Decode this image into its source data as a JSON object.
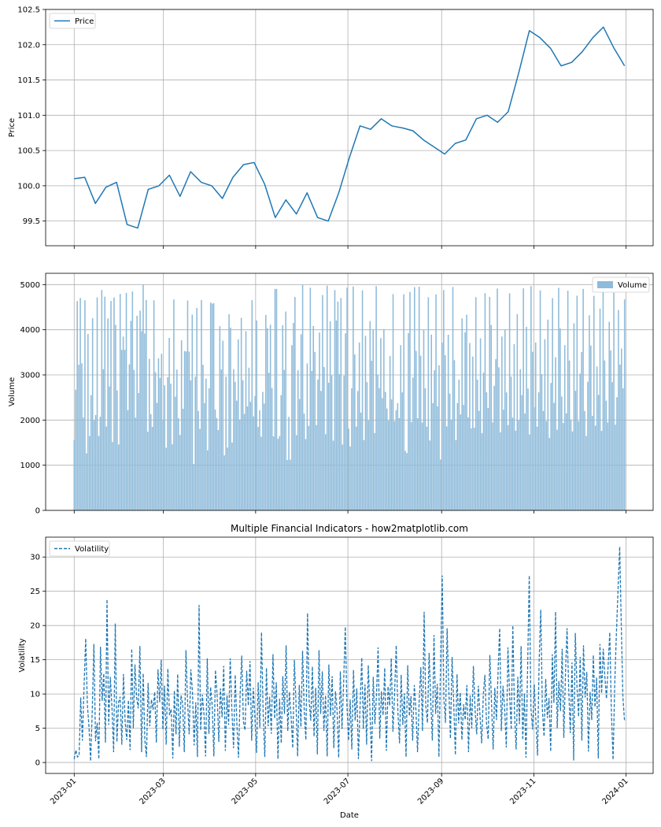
{
  "title": "Multiple Financial Indicators - how2matplotlib.com",
  "colors": {
    "line": "#1f77b4",
    "bar": "#8fbbda",
    "grid": "#b0b0b0",
    "axes": "#000000"
  },
  "x_axis": {
    "label": "Date",
    "start": "2023-01-01",
    "end": "2023-12-31",
    "ticks": [
      "2023-01",
      "2023-03",
      "2023-05",
      "2023-07",
      "2023-09",
      "2023-11",
      "2024-01"
    ]
  },
  "chart_data": [
    {
      "type": "line",
      "ylabel": "Price",
      "legend": "Price",
      "legend_loc": "upper left",
      "ylim": [
        99.15,
        102.5
      ],
      "yticks": [
        99.5,
        100.0,
        100.5,
        101.0,
        101.5,
        102.0,
        102.5
      ],
      "grid": true,
      "x": [
        "2023-01-01",
        "2023-01-08",
        "2023-01-15",
        "2023-01-22",
        "2023-01-29",
        "2023-02-05",
        "2023-02-12",
        "2023-02-19",
        "2023-02-26",
        "2023-03-05",
        "2023-03-12",
        "2023-03-19",
        "2023-03-26",
        "2023-04-02",
        "2023-04-09",
        "2023-04-16",
        "2023-04-23",
        "2023-04-30",
        "2023-05-07",
        "2023-05-14",
        "2023-05-21",
        "2023-05-28",
        "2023-06-04",
        "2023-06-11",
        "2023-06-18",
        "2023-06-25",
        "2023-07-02",
        "2023-07-09",
        "2023-07-16",
        "2023-07-23",
        "2023-07-30",
        "2023-08-06",
        "2023-08-13",
        "2023-08-20",
        "2023-08-27",
        "2023-09-03",
        "2023-09-10",
        "2023-09-17",
        "2023-09-24",
        "2023-10-01",
        "2023-10-08",
        "2023-10-15",
        "2023-10-22",
        "2023-10-29",
        "2023-11-05",
        "2023-11-12",
        "2023-11-19",
        "2023-11-26",
        "2023-12-03",
        "2023-12-10",
        "2023-12-17",
        "2023-12-24",
        "2023-12-31"
      ],
      "values": [
        100.1,
        100.12,
        99.75,
        99.98,
        100.05,
        99.45,
        99.4,
        99.95,
        100.0,
        100.15,
        99.85,
        100.2,
        100.05,
        100.0,
        99.82,
        100.12,
        100.3,
        100.33,
        100.02,
        99.55,
        99.8,
        99.6,
        99.9,
        99.55,
        99.5,
        99.9,
        100.4,
        100.85,
        100.8,
        100.95,
        100.85,
        100.82,
        100.78,
        100.65,
        100.55,
        100.45,
        100.6,
        100.65,
        100.95,
        101.0,
        100.9,
        101.05,
        101.6,
        102.2,
        102.1,
        101.95,
        101.7,
        101.75,
        101.9,
        102.1,
        102.25,
        101.95,
        101.7
      ]
    },
    {
      "type": "bar",
      "ylabel": "Volume",
      "legend": "Volume",
      "legend_loc": "upper right",
      "ylim": [
        0,
        5250
      ],
      "yticks": [
        0,
        1000,
        2000,
        3000,
        4000,
        5000
      ],
      "grid": true,
      "start": "2023-01-01",
      "values": [
        1555,
        2674,
        4635,
        3222,
        4706,
        3255,
        2054,
        4653,
        1265,
        3906,
        1646,
        2550,
        4255,
        1994,
        2110,
        4718,
        1647,
        2073,
        4880,
        3125,
        4733,
        1858,
        4250,
        2745,
        4637,
        1516,
        4716,
        4109,
        2654,
        1459,
        4794,
        3553,
        3848,
        3555,
        4815,
        2218,
        3234,
        4196,
        4847,
        3112,
        2055,
        4309,
        2600,
        4422,
        3968,
        4998,
        3917,
        4658,
        1742,
        3356,
        2131,
        1849,
        4651,
        3059,
        2381,
        3368,
        2933,
        3468,
        2008,
        2769,
        1389,
        2947,
        3819,
        2807,
        1463,
        4671,
        2520,
        3118,
        2040,
        1670,
        3768,
        2250,
        3528,
        3519,
        4648,
        3517,
        2880,
        4336,
        1026,
        2962,
        4480,
        2201,
        1803,
        4659,
        3225,
        2377,
        2918,
        1332,
        2706,
        4603,
        4578,
        4587,
        2233,
        2045,
        1779,
        4080,
        3120,
        3758,
        1218,
        2962,
        1392,
        4343,
        4048,
        1504,
        3127,
        2846,
        2430,
        3787,
        2012,
        4264,
        2883,
        2136,
        3968,
        2303,
        3160,
        2406,
        4655,
        2082,
        2533,
        4206,
        1848,
        2219,
        1633,
        2624,
        2366,
        4327,
        4035,
        3045,
        4113,
        2710,
        1640,
        4905,
        4903,
        1583,
        1644,
        2554,
        4103,
        3111,
        4402,
        1117,
        2072,
        1124,
        3657,
        4151,
        4727,
        1668,
        3102,
        2466,
        3898,
        4988,
        2144,
        1578,
        3254,
        1869,
        4930,
        3087,
        4081,
        3510,
        1890,
        2898,
        3938,
        2645,
        4769,
        3176,
        1689,
        4976,
        2827,
        4185,
        2988,
        1543,
        4880,
        4205,
        4622,
        3017,
        4702,
        1459,
        2982,
        3921,
        4933,
        1811,
        1414,
        2703,
        4957,
        3452,
        1855,
        2645,
        3718,
        2167,
        4872,
        1557,
        3864,
        2839,
        1990,
        4191,
        3315,
        3995,
        1712,
        4966,
        3010,
        2709,
        3817,
        2487,
        4013,
        2624,
        2255,
        1986,
        3416,
        2457,
        4790,
        1974,
        2218,
        2376,
        2044,
        3659,
        2612,
        4786,
        1320,
        1269,
        3926,
        4838,
        1953,
        2943,
        4943,
        3532,
        2040,
        4954,
        3425,
        1944,
        4002,
        2706,
        1853,
        4719,
        1549,
        3893,
        2375,
        3103,
        4783,
        2305,
        3215,
        1127,
        3713,
        4878,
        3434,
        1860,
        3893,
        2587,
        2010,
        4946,
        3325,
        1555,
        2377,
        2896,
        2124,
        4252,
        2338,
        3942,
        4335,
        2061,
        3707,
        1818,
        3408,
        1829,
        4722,
        2895,
        2204,
        3811,
        1711,
        3049,
        4810,
        2615,
        2266,
        4728,
        4105,
        1950,
        2758,
        3350,
        4912,
        3167,
        1729,
        3849,
        2230,
        4009,
        2612,
        1888,
        4807,
        2961,
        2053,
        3680,
        1765,
        4346,
        1991,
        3126,
        2554,
        4917,
        2145,
        4066,
        2699,
        1681,
        4966,
        3512,
        2284,
        3719,
        1852,
        2614,
        4871,
        3018,
        2203,
        3790,
        1977,
        4224,
        1606,
        2822,
        4698,
        2380,
        3391,
        1786,
        4928,
        4031,
        2520,
        1934,
        3659,
        2147,
        4864,
        3317,
        2011,
        1750,
        4145,
        2648,
        4755,
        1974,
        3028,
        3506,
        4904,
        2201,
        1645,
        2848,
        4318,
        3651,
        2094,
        4751,
        1875,
        3187,
        2558,
        4467,
        1760,
        4961,
        3321,
        2430,
        1949,
        4175,
        3543,
        2839,
        4819,
        1897,
        2506,
        4436,
        3228,
        3584,
        2705,
        4672
      ]
    },
    {
      "type": "line",
      "ylabel": "Volatility",
      "legend": "Volatility",
      "legend_loc": "upper left",
      "line_style": "dashed",
      "ylim": [
        -1.6,
        32.9
      ],
      "yticks": [
        0,
        5,
        10,
        15,
        20,
        25,
        30
      ],
      "grid": true,
      "start": "2023-01-01",
      "values": [
        0.5,
        1.8,
        0.8,
        1.0,
        9.5,
        3.2,
        11.0,
        18.1,
        8.5,
        5.2,
        0.2,
        7.8,
        17.3,
        3.1,
        5.8,
        0.5,
        16.9,
        9.0,
        13.0,
        2.9,
        23.8,
        5.5,
        12.5,
        8.0,
        1.5,
        20.3,
        3.0,
        8.8,
        9.6,
        2.6,
        12.9,
        6.0,
        3.3,
        9.1,
        1.8,
        16.6,
        5.0,
        14.3,
        9.5,
        7.9,
        17.0,
        1.5,
        13.0,
        3.2,
        0.8,
        11.6,
        5.3,
        9.2,
        7.7,
        10.3,
        2.9,
        13.6,
        8.8,
        15.0,
        4.8,
        11.2,
        2.6,
        13.7,
        6.9,
        7.8,
        0.6,
        10.5,
        4.1,
        12.9,
        2.3,
        9.8,
        8.6,
        1.5,
        16.4,
        9.1,
        4.1,
        13.6,
        10.3,
        2.5,
        8.8,
        0.8,
        23.0,
        4.7,
        9.9,
        7.1,
        0.9,
        15.2,
        4.2,
        11.0,
        8.3,
        0.9,
        13.5,
        9.9,
        3.0,
        10.8,
        6.6,
        14.1,
        1.7,
        9.8,
        5.5,
        15.2,
        7.6,
        2.1,
        12.8,
        5.7,
        0.7,
        10.1,
        15.6,
        6.0,
        4.7,
        13.4,
        8.3,
        14.8,
        3.2,
        10.9,
        6.7,
        1.4,
        11.7,
        5.1,
        19.0,
        7.2,
        0.8,
        13.8,
        5.3,
        9.6,
        4.2,
        15.8,
        6.4,
        11.7,
        0.5,
        9.3,
        2.8,
        12.6,
        7.1,
        17.1,
        4.6,
        10.3,
        6.8,
        2.1,
        15.0,
        8.8,
        0.9,
        11.3,
        5.2,
        16.3,
        7.6,
        3.3,
        21.8,
        9.1,
        6.1,
        14.0,
        3.8,
        10.9,
        1.2,
        16.4,
        7.1,
        13.3,
        4.6,
        9.8,
        0.9,
        14.3,
        6.8,
        12.6,
        2.1,
        10.4,
        7.7,
        0.7,
        13.3,
        4.9,
        11.7,
        19.8,
        8.3,
        3.2,
        9.2,
        1.9,
        13.5,
        6.1,
        10.8,
        0.5,
        8.2,
        15.3,
        4.9,
        11.4,
        2.6,
        14.2,
        7.7,
        0.2,
        12.5,
        5.6,
        9.8,
        16.8,
        3.5,
        10.4,
        6.9,
        13.8,
        1.7,
        11.1,
        8.3,
        15.2,
        4.5,
        9.9,
        17.1,
        7.5,
        2.8,
        12.8,
        5.5,
        10.1,
        0.8,
        14.2,
        6.8,
        9.7,
        3.2,
        11.3,
        7.6,
        1.5,
        8.9,
        13.9,
        4.6,
        22.0,
        8.2,
        5.8,
        16.0,
        9.3,
        3.2,
        18.6,
        7.1,
        11.5,
        0.8,
        14.7,
        27.3,
        9.3,
        5.8,
        19.6,
        10.9,
        3.5,
        15.4,
        8.6,
        1.1,
        12.9,
        5.7,
        10.2,
        3.3,
        8.5,
        6.2,
        11.3,
        1.5,
        9.8,
        5.0,
        14.1,
        7.7,
        4.1,
        11.2,
        6.8,
        2.8,
        9.9,
        12.8,
        5.7,
        3.4,
        15.7,
        8.8,
        1.9,
        10.9,
        6.2,
        13.4,
        19.6,
        4.6,
        11.2,
        7.9,
        2.2,
        16.8,
        9.9,
        4.8,
        20.0,
        7.3,
        1.9,
        12.5,
        5.6,
        17.0,
        3.3,
        10.1,
        0.7,
        13.8,
        27.3,
        8.0,
        4.8,
        11.4,
        6.1,
        1.0,
        14.6,
        22.3,
        7.6,
        3.8,
        12.2,
        6.5,
        9.4,
        1.6,
        15.8,
        8.7,
        22.0,
        5.0,
        11.9,
        7.5,
        16.6,
        3.6,
        12.9,
        19.6,
        10.8,
        4.3,
        14.6,
        0.3,
        18.9,
        11.1,
        6.7,
        15.4,
        3.2,
        17.1,
        9.5,
        13.2,
        1.6,
        10.3,
        6.2,
        15.7,
        8.1,
        12.4,
        0.6,
        17.3,
        10.1,
        16.6,
        12.5,
        9.3,
        14.1,
        19.0,
        7.2,
        0.4,
        11.5,
        18.8,
        25.2,
        31.5,
        20.2,
        9.5,
        6.0
      ]
    }
  ]
}
